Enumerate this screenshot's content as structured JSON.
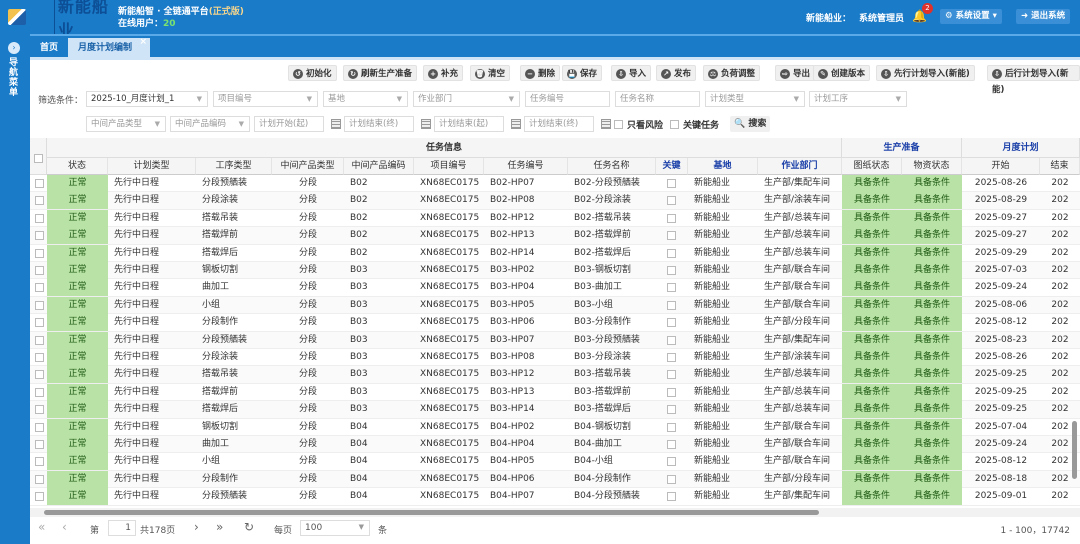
{
  "header": {
    "brand": "新能船业",
    "system_title": "新能船智 · 全链通平台",
    "env_tag": "(正式版)",
    "online_label": "在线用户：",
    "online_count": "20",
    "org_label": "新能船业：",
    "user_role": "系统管理员",
    "notification_count": "2",
    "settings_label": "系统设置",
    "logout_label": "退出系统"
  },
  "sidebar": {
    "label": "导航菜单"
  },
  "tabs": [
    {
      "label": "首页"
    },
    {
      "label": "月度计划编制",
      "close": "×"
    }
  ],
  "toolbar": [
    "初始化",
    "刷新生产准备",
    "补充",
    "清空",
    "删除",
    "保存",
    "导入",
    "发布",
    "负荷调整",
    "导出",
    "创建版本",
    "先行计划导入(新能)",
    "后行计划导入(新能)"
  ],
  "filters": {
    "label": "筛选条件：",
    "plan_version": "2025-10_月度计划_1",
    "placeholders": [
      "项目编号",
      "基地",
      "作业部门",
      "任务编号",
      "任务名称",
      "计划类型",
      "计划工序",
      "中间产品类型",
      "中间产品编码",
      "计划开始(起)",
      "计划结束(终)",
      "计划结束(起)",
      "计划结束(终)"
    ],
    "only_risk": "只看风险",
    "key_task": "关键任务",
    "search": "搜索"
  },
  "grid": {
    "groups": {
      "task_info": "任务信息",
      "prep": "生产准备",
      "monthly": "月度计划"
    },
    "columns": [
      "状态",
      "计划类型",
      "工序类型",
      "中间产品类型",
      "中间产品编码",
      "项目编号",
      "任务编号",
      "任务名称",
      "关键",
      "基地",
      "作业部门",
      "图纸状态",
      "物资状态",
      "开始",
      "结束"
    ],
    "rows": [
      [
        "正常",
        "先行中日程",
        "分段预舾装",
        "分段",
        "B02",
        "XN68EC0175",
        "B02-HP07",
        "B02-分段预舾装",
        "",
        "新能船业",
        "生产部/集配车间",
        "具备条件",
        "具备条件",
        "2025-08-26",
        "202"
      ],
      [
        "正常",
        "先行中日程",
        "分段涂装",
        "分段",
        "B02",
        "XN68EC0175",
        "B02-HP08",
        "B02-分段涂装",
        "",
        "新能船业",
        "生产部/涂装车间",
        "具备条件",
        "具备条件",
        "2025-08-29",
        "202"
      ],
      [
        "正常",
        "先行中日程",
        "搭载吊装",
        "分段",
        "B02",
        "XN68EC0175",
        "B02-HP12",
        "B02-搭载吊装",
        "",
        "新能船业",
        "生产部/总装车间",
        "具备条件",
        "具备条件",
        "2025-09-27",
        "202"
      ],
      [
        "正常",
        "先行中日程",
        "搭载焊前",
        "分段",
        "B02",
        "XN68EC0175",
        "B02-HP13",
        "B02-搭载焊前",
        "",
        "新能船业",
        "生产部/总装车间",
        "具备条件",
        "具备条件",
        "2025-09-27",
        "202"
      ],
      [
        "正常",
        "先行中日程",
        "搭载焊后",
        "分段",
        "B02",
        "XN68EC0175",
        "B02-HP14",
        "B02-搭载焊后",
        "",
        "新能船业",
        "生产部/总装车间",
        "具备条件",
        "具备条件",
        "2025-09-29",
        "202"
      ],
      [
        "正常",
        "先行中日程",
        "钢板切割",
        "分段",
        "B03",
        "XN68EC0175",
        "B03-HP02",
        "B03-钢板切割",
        "",
        "新能船业",
        "生产部/联合车间",
        "具备条件",
        "具备条件",
        "2025-07-03",
        "202"
      ],
      [
        "正常",
        "先行中日程",
        "曲加工",
        "分段",
        "B03",
        "XN68EC0175",
        "B03-HP04",
        "B03-曲加工",
        "",
        "新能船业",
        "生产部/联合车间",
        "具备条件",
        "具备条件",
        "2025-09-24",
        "202"
      ],
      [
        "正常",
        "先行中日程",
        "小组",
        "分段",
        "B03",
        "XN68EC0175",
        "B03-HP05",
        "B03-小组",
        "",
        "新能船业",
        "生产部/联合车间",
        "具备条件",
        "具备条件",
        "2025-08-06",
        "202"
      ],
      [
        "正常",
        "先行中日程",
        "分段制作",
        "分段",
        "B03",
        "XN68EC0175",
        "B03-HP06",
        "B03-分段制作",
        "",
        "新能船业",
        "生产部/分段车间",
        "具备条件",
        "具备条件",
        "2025-08-12",
        "202"
      ],
      [
        "正常",
        "先行中日程",
        "分段预舾装",
        "分段",
        "B03",
        "XN68EC0175",
        "B03-HP07",
        "B03-分段预舾装",
        "",
        "新能船业",
        "生产部/集配车间",
        "具备条件",
        "具备条件",
        "2025-08-23",
        "202"
      ],
      [
        "正常",
        "先行中日程",
        "分段涂装",
        "分段",
        "B03",
        "XN68EC0175",
        "B03-HP08",
        "B03-分段涂装",
        "",
        "新能船业",
        "生产部/涂装车间",
        "具备条件",
        "具备条件",
        "2025-08-26",
        "202"
      ],
      [
        "正常",
        "先行中日程",
        "搭载吊装",
        "分段",
        "B03",
        "XN68EC0175",
        "B03-HP12",
        "B03-搭载吊装",
        "",
        "新能船业",
        "生产部/总装车间",
        "具备条件",
        "具备条件",
        "2025-09-25",
        "202"
      ],
      [
        "正常",
        "先行中日程",
        "搭载焊前",
        "分段",
        "B03",
        "XN68EC0175",
        "B03-HP13",
        "B03-搭载焊前",
        "",
        "新能船业",
        "生产部/总装车间",
        "具备条件",
        "具备条件",
        "2025-09-25",
        "202"
      ],
      [
        "正常",
        "先行中日程",
        "搭载焊后",
        "分段",
        "B03",
        "XN68EC0175",
        "B03-HP14",
        "B03-搭载焊后",
        "",
        "新能船业",
        "生产部/总装车间",
        "具备条件",
        "具备条件",
        "2025-09-25",
        "202"
      ],
      [
        "正常",
        "先行中日程",
        "钢板切割",
        "分段",
        "B04",
        "XN68EC0175",
        "B04-HP02",
        "B04-钢板切割",
        "",
        "新能船业",
        "生产部/联合车间",
        "具备条件",
        "具备条件",
        "2025-07-04",
        "202"
      ],
      [
        "正常",
        "先行中日程",
        "曲加工",
        "分段",
        "B04",
        "XN68EC0175",
        "B04-HP04",
        "B04-曲加工",
        "",
        "新能船业",
        "生产部/联合车间",
        "具备条件",
        "具备条件",
        "2025-09-24",
        "202"
      ],
      [
        "正常",
        "先行中日程",
        "小组",
        "分段",
        "B04",
        "XN68EC0175",
        "B04-HP05",
        "B04-小组",
        "",
        "新能船业",
        "生产部/联合车间",
        "具备条件",
        "具备条件",
        "2025-08-12",
        "202"
      ],
      [
        "正常",
        "先行中日程",
        "分段制作",
        "分段",
        "B04",
        "XN68EC0175",
        "B04-HP06",
        "B04-分段制作",
        "",
        "新能船业",
        "生产部/分段车间",
        "具备条件",
        "具备条件",
        "2025-08-18",
        "202"
      ],
      [
        "正常",
        "先行中日程",
        "分段预舾装",
        "分段",
        "B04",
        "XN68EC0175",
        "B04-HP07",
        "B04-分段预舾装",
        "",
        "新能船业",
        "生产部/集配车间",
        "具备条件",
        "具备条件",
        "2025-09-01",
        "202"
      ]
    ]
  },
  "pager": {
    "page_label": "第",
    "page": "1",
    "total_pages": "共178页",
    "per_page_label": "每页",
    "per_page": "100",
    "unit": "条",
    "summary": "1 - 100，17742"
  },
  "colors": {
    "primary": "#1a7bc9",
    "ready_green": "#b9e3a6",
    "header_blue": "#1a3fa8"
  }
}
